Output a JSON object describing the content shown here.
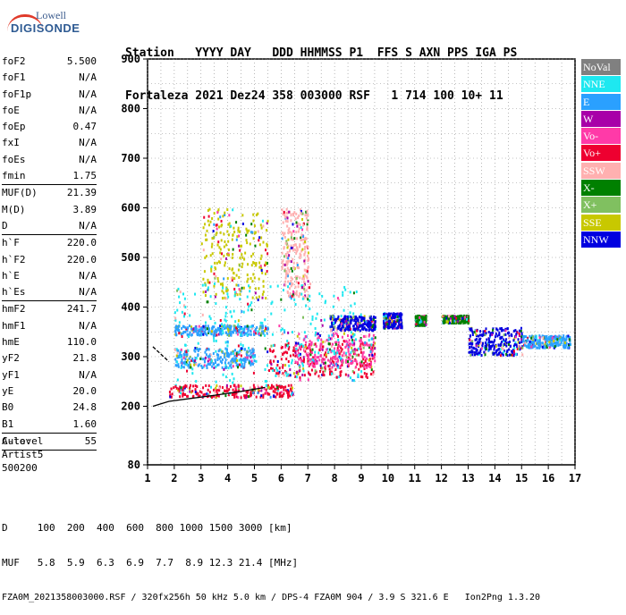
{
  "logo": {
    "line1": "Lowell",
    "line2": "DIGISONDE"
  },
  "header": {
    "line1": "Station   YYYY DAY   DDD HHMMSS P1  FFS S AXN PPS IGA PS",
    "line2": "Fortaleza 2021 Dez24 358 003000 RSF   1 714 100 10+ 11"
  },
  "params": [
    [
      {
        "k": "foF2",
        "v": "5.500"
      },
      {
        "k": "foF1",
        "v": "N/A"
      },
      {
        "k": "foF1p",
        "v": "N/A"
      },
      {
        "k": "foE",
        "v": "N/A"
      },
      {
        "k": "foEp",
        "v": "0.47"
      },
      {
        "k": "fxI",
        "v": "N/A"
      },
      {
        "k": "foEs",
        "v": "N/A"
      },
      {
        "k": "fmin",
        "v": "1.75"
      }
    ],
    [
      {
        "k": "MUF(D)",
        "v": "21.39"
      },
      {
        "k": "M(D)",
        "v": "3.89"
      },
      {
        "k": "D",
        "v": "N/A"
      }
    ],
    [
      {
        "k": "h`F",
        "v": "220.0"
      },
      {
        "k": "h`F2",
        "v": "220.0"
      },
      {
        "k": "h`E",
        "v": "N/A"
      },
      {
        "k": "h`Es",
        "v": "N/A"
      }
    ],
    [
      {
        "k": "hmF2",
        "v": "241.7"
      },
      {
        "k": "hmF1",
        "v": "N/A"
      },
      {
        "k": "hmE",
        "v": "110.0"
      },
      {
        "k": "yF2",
        "v": "21.8"
      },
      {
        "k": "yF1",
        "v": "N/A"
      },
      {
        "k": "yE",
        "v": "20.0"
      },
      {
        "k": "B0",
        "v": "24.8"
      },
      {
        "k": "B1",
        "v": "1.60"
      }
    ],
    [
      {
        "k": "C-level",
        "v": "55"
      }
    ]
  ],
  "auto": {
    "line1": "Auto:",
    "line2": "Artist5",
    "line3": "500200"
  },
  "legend": [
    {
      "label": "NoVal",
      "color": "#808080"
    },
    {
      "label": "NNE",
      "color": "#1ee8f0"
    },
    {
      "label": "E",
      "color": "#2aa0ff"
    },
    {
      "label": "W",
      "color": "#a800a8"
    },
    {
      "label": "Vo-",
      "color": "#ff3aa8"
    },
    {
      "label": "Vo+",
      "color": "#ee0030"
    },
    {
      "label": "SSW",
      "color": "#ffb0b0"
    },
    {
      "label": "X-",
      "color": "#008000"
    },
    {
      "label": "X+",
      "color": "#80c060"
    },
    {
      "label": "SSE",
      "color": "#c8c800"
    },
    {
      "label": "NNW",
      "color": "#0000e0"
    }
  ],
  "chart_data": {
    "type": "scatter",
    "xlabel": "",
    "ylabel": "",
    "xlim": [
      1,
      17
    ],
    "ylim": [
      80,
      900
    ],
    "x_ticks": [
      "1",
      "2",
      "3",
      "4",
      "5",
      "6",
      "7",
      "8",
      "9",
      "10",
      "11",
      "12",
      "13",
      "14",
      "15",
      "16",
      "17"
    ],
    "y_ticks": [
      "900",
      "800",
      "700",
      "600",
      "500",
      "400",
      "300",
      "200",
      "80"
    ],
    "grid": true,
    "ionogram_clusters": [
      {
        "name": "E",
        "x": [
          2.0,
          5.5
        ],
        "y": [
          345,
          365
        ]
      },
      {
        "name": "E",
        "x": [
          2.0,
          5.0
        ],
        "y": [
          280,
          320
        ]
      },
      {
        "name": "Vo+",
        "x": [
          1.8,
          6.5
        ],
        "y": [
          220,
          245
        ]
      },
      {
        "name": "Vo+",
        "x": [
          5.5,
          9.5
        ],
        "y": [
          260,
          330
        ]
      },
      {
        "name": "Vo-",
        "x": [
          6.5,
          9.5
        ],
        "y": [
          280,
          350
        ]
      },
      {
        "name": "NNW",
        "x": [
          7.8,
          9.5
        ],
        "y": [
          355,
          385
        ]
      },
      {
        "name": "NNW",
        "x": [
          9.8,
          10.5
        ],
        "y": [
          360,
          390
        ]
      },
      {
        "name": "X-",
        "x": [
          11.0,
          11.4
        ],
        "y": [
          365,
          385
        ]
      },
      {
        "name": "X-",
        "x": [
          12.0,
          13.0
        ],
        "y": [
          370,
          385
        ]
      },
      {
        "name": "NNW",
        "x": [
          13.0,
          15.0
        ],
        "y": [
          305,
          360
        ]
      },
      {
        "name": "E",
        "x": [
          15.0,
          16.8
        ],
        "y": [
          320,
          345
        ]
      },
      {
        "name": "SSE",
        "x": [
          3.0,
          5.5
        ],
        "y": [
          420,
          600
        ]
      },
      {
        "name": "SSW",
        "x": [
          6.0,
          7.0
        ],
        "y": [
          420,
          600
        ]
      },
      {
        "name": "NNE",
        "x": [
          2.0,
          9.0
        ],
        "y": [
          250,
          450
        ]
      }
    ],
    "trace_lower": {
      "x": [
        1.2,
        1.8,
        2.5,
        3.5,
        4.5,
        5.4
      ],
      "y": [
        200,
        210,
        215,
        222,
        230,
        238
      ]
    },
    "trace_upper": {
      "x": [
        1.2,
        1.5,
        1.8
      ],
      "y": [
        320,
        305,
        290
      ]
    }
  },
  "footer": {
    "line1": "D     100  200  400  600  800 1000 1500 3000 [km]",
    "line2": "MUF   5.8  5.9  6.3  6.9  7.7  8.9 12.3 21.4 [MHz]",
    "line3": "FZA0M_2021358003000.RSF / 320fx256h 50 kHz 5.0 km / DPS-4 FZA0M 904 / 3.9 S 321.6 E   Ion2Png 1.3.20"
  }
}
